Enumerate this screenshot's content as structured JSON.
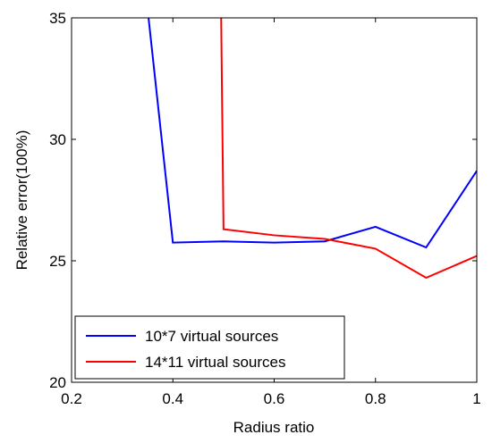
{
  "chart_data": {
    "type": "line",
    "title": "",
    "xlabel": "Radius ratio",
    "ylabel": "Relative error(100%)",
    "xlim": [
      0.2,
      1.0
    ],
    "ylim": [
      20,
      35
    ],
    "xticks": [
      0.2,
      0.4,
      0.6,
      0.8,
      1.0
    ],
    "xtick_labels": [
      "0.2",
      "0.4",
      "0.6",
      "0.8",
      "1"
    ],
    "yticks": [
      20,
      25,
      30,
      35
    ],
    "ytick_labels": [
      "20",
      "25",
      "30",
      "35"
    ],
    "grid": false,
    "legend_position": "bottom-left",
    "series": [
      {
        "name": "10*7 virtual sources",
        "color": "#0000ff",
        "x": [
          0.3,
          0.4,
          0.5,
          0.6,
          0.7,
          0.8,
          0.9,
          1.0
        ],
        "y": [
          45.0,
          25.75,
          25.8,
          25.75,
          25.8,
          26.4,
          25.55,
          28.7
        ]
      },
      {
        "name": "14*11 virtual sources",
        "color": "#ff0000",
        "x": [
          0.49,
          0.5,
          0.6,
          0.7,
          0.8,
          0.9,
          1.0
        ],
        "y": [
          45.0,
          26.3,
          26.05,
          25.9,
          25.5,
          24.3,
          25.2
        ]
      }
    ]
  }
}
